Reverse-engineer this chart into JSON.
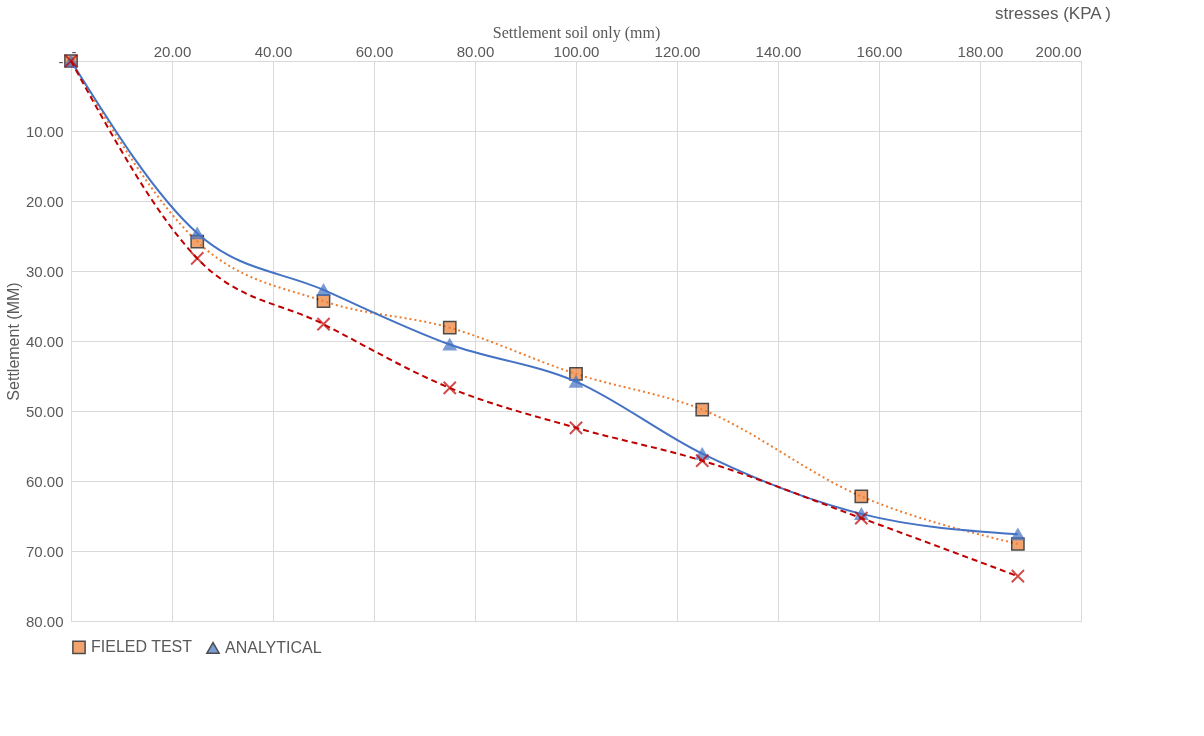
{
  "chart_data": {
    "type": "line",
    "xlabel": "Settlement soil only (mm)",
    "ylabel": "Settlement (MM)",
    "annotations": [
      "stresses (KPA )"
    ],
    "x": [
      0,
      25,
      50,
      75,
      100,
      125,
      156.5,
      187.5
    ],
    "series": [
      {
        "name": "FIELED TEST",
        "color": "#ed7d31",
        "marker": "square",
        "line_style": "dotted",
        "values": [
          0,
          25.8,
          34.3,
          38.1,
          44.7,
          49.8,
          62.2,
          69.0
        ]
      },
      {
        "name": "ANALYTICAL",
        "color": "#4472c4",
        "marker": "triangle",
        "line_style": "solid",
        "values": [
          0,
          24.6,
          32.7,
          40.5,
          45.8,
          56.1,
          64.7,
          67.6
        ]
      },
      {
        "color": "#c00000",
        "marker": "cross",
        "line_style": "dashed",
        "values": [
          0,
          28.2,
          37.6,
          46.7,
          52.4,
          57.1,
          65.3,
          73.6
        ]
      }
    ],
    "xlim": [
      0,
      200
    ],
    "ylim": [
      80,
      0
    ],
    "xticks": [
      {
        "value": 0,
        "label": "-"
      },
      {
        "value": 20,
        "label": "20.00"
      },
      {
        "value": 40,
        "label": "40.00"
      },
      {
        "value": 60,
        "label": "60.00"
      },
      {
        "value": 80,
        "label": "80.00"
      },
      {
        "value": 100,
        "label": "100.00"
      },
      {
        "value": 120,
        "label": "120.00"
      },
      {
        "value": 140,
        "label": "140.00"
      },
      {
        "value": 160,
        "label": "160.00"
      },
      {
        "value": 180,
        "label": "180.00"
      },
      {
        "value": 200,
        "label": "200.00"
      }
    ],
    "yticks": [
      {
        "value": 0,
        "label": "-"
      },
      {
        "value": 10,
        "label": "10.00"
      },
      {
        "value": 20,
        "label": "20.00"
      },
      {
        "value": 30,
        "label": "30.00"
      },
      {
        "value": 40,
        "label": "40.00"
      },
      {
        "value": 50,
        "label": "50.00"
      },
      {
        "value": 60,
        "label": "60.00"
      },
      {
        "value": 70,
        "label": "70.00"
      },
      {
        "value": 80,
        "label": "80.00"
      }
    ],
    "grid": true,
    "legend": "bottom"
  }
}
